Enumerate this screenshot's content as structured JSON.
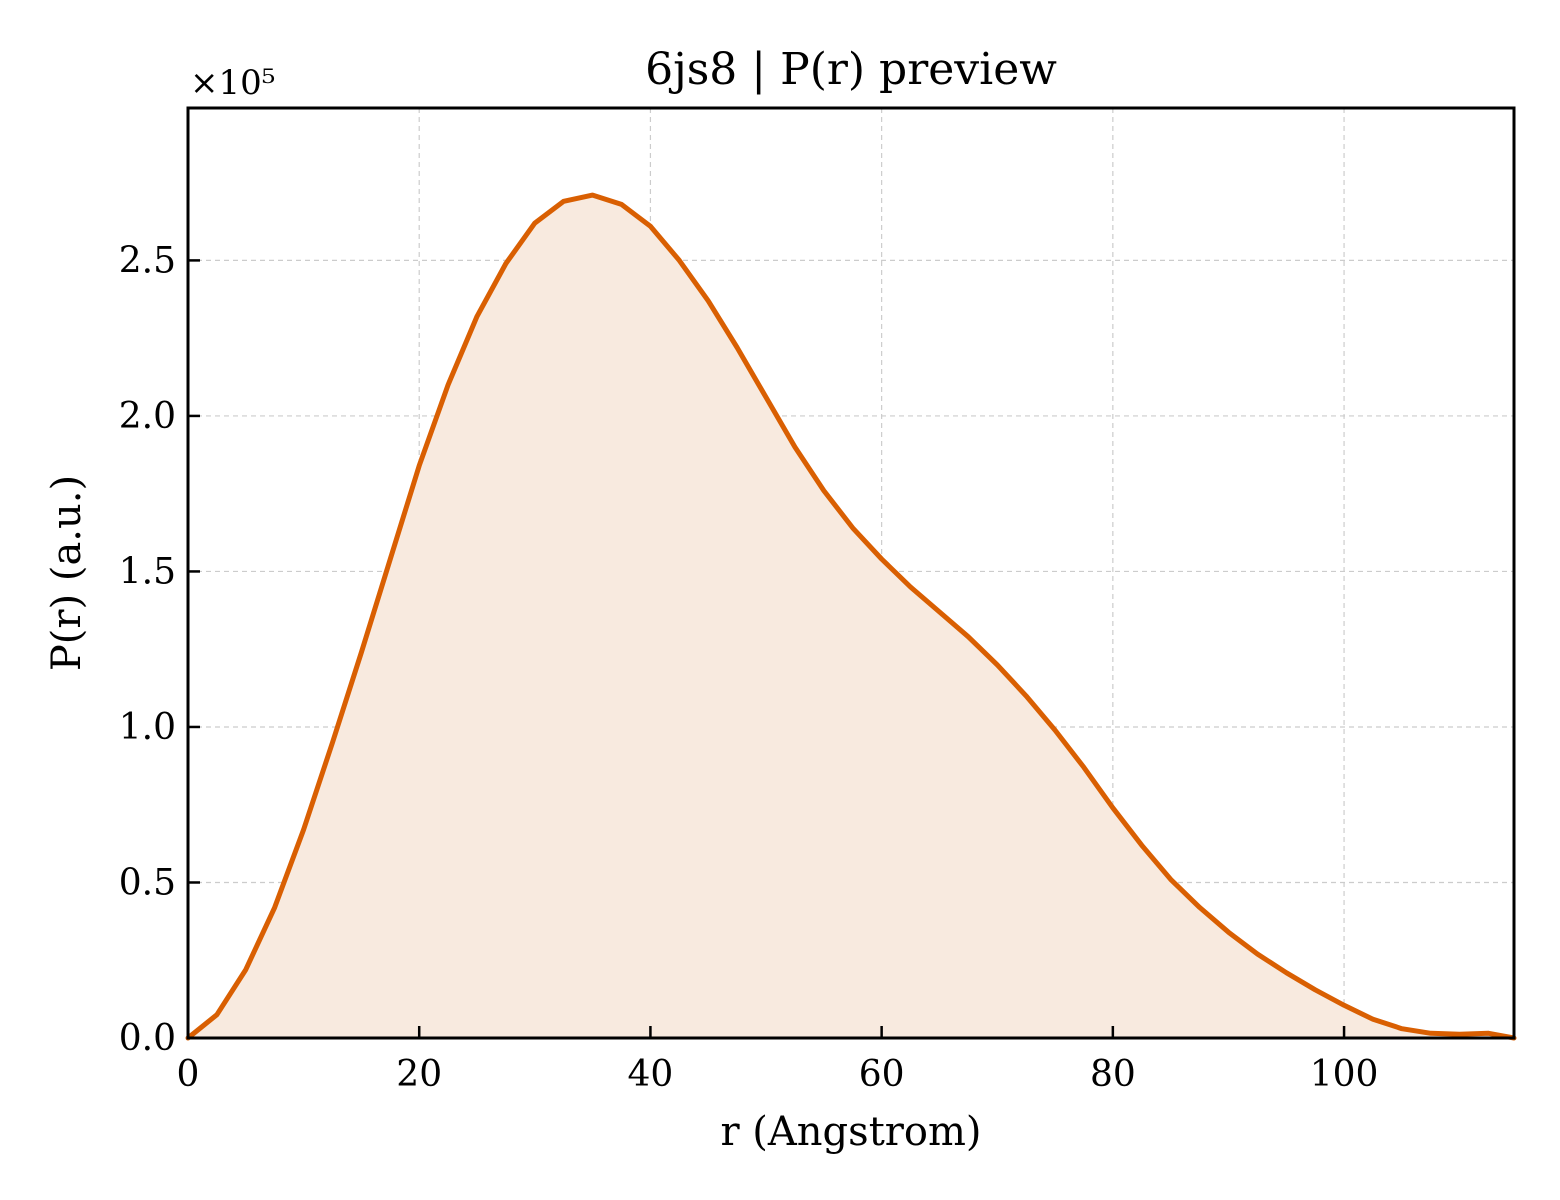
{
  "chart_data": {
    "type": "area",
    "title": "6js8 | P(r) preview",
    "xlabel": "r (Angstrom)",
    "ylabel": "P(r) (a.u.)",
    "y_offset_label": "×10⁵",
    "xlim": [
      0,
      114.7
    ],
    "ylim": [
      0,
      2.99
    ],
    "xticks": [
      0,
      20,
      40,
      60,
      80,
      100
    ],
    "xtick_labels": [
      "0",
      "20",
      "40",
      "60",
      "80",
      "100"
    ],
    "yticks": [
      0,
      0.5,
      1.0,
      1.5,
      2.0,
      2.5
    ],
    "ytick_labels": [
      "0.0",
      "0.5",
      "1.0",
      "1.5",
      "2.0",
      "2.5"
    ],
    "grid": true,
    "line_color": "#d95f02",
    "fill_color": "#f8eadf",
    "series": [
      {
        "x": [
          0,
          2.5,
          5,
          7.5,
          10,
          12.5,
          15,
          17.5,
          20,
          22.5,
          25,
          27.5,
          30,
          32.5,
          35,
          37.5,
          40,
          42.5,
          45,
          47.5,
          50,
          52.5,
          55,
          57.5,
          60,
          62.5,
          65,
          67.5,
          70,
          72.5,
          75,
          77.5,
          80,
          82.5,
          85,
          87.5,
          90,
          92.5,
          95,
          97.5,
          100,
          102.5,
          105,
          107.5,
          110,
          112.5,
          114.7
        ],
        "y": [
          0.0,
          0.075,
          0.22,
          0.42,
          0.67,
          0.95,
          1.24,
          1.54,
          1.84,
          2.1,
          2.32,
          2.49,
          2.62,
          2.69,
          2.71,
          2.68,
          2.61,
          2.5,
          2.37,
          2.22,
          2.06,
          1.9,
          1.76,
          1.64,
          1.54,
          1.45,
          1.37,
          1.29,
          1.2,
          1.1,
          0.99,
          0.87,
          0.74,
          0.62,
          0.51,
          0.42,
          0.34,
          0.27,
          0.21,
          0.155,
          0.105,
          0.06,
          0.03,
          0.015,
          0.012,
          0.015,
          0.0
        ]
      }
    ]
  }
}
